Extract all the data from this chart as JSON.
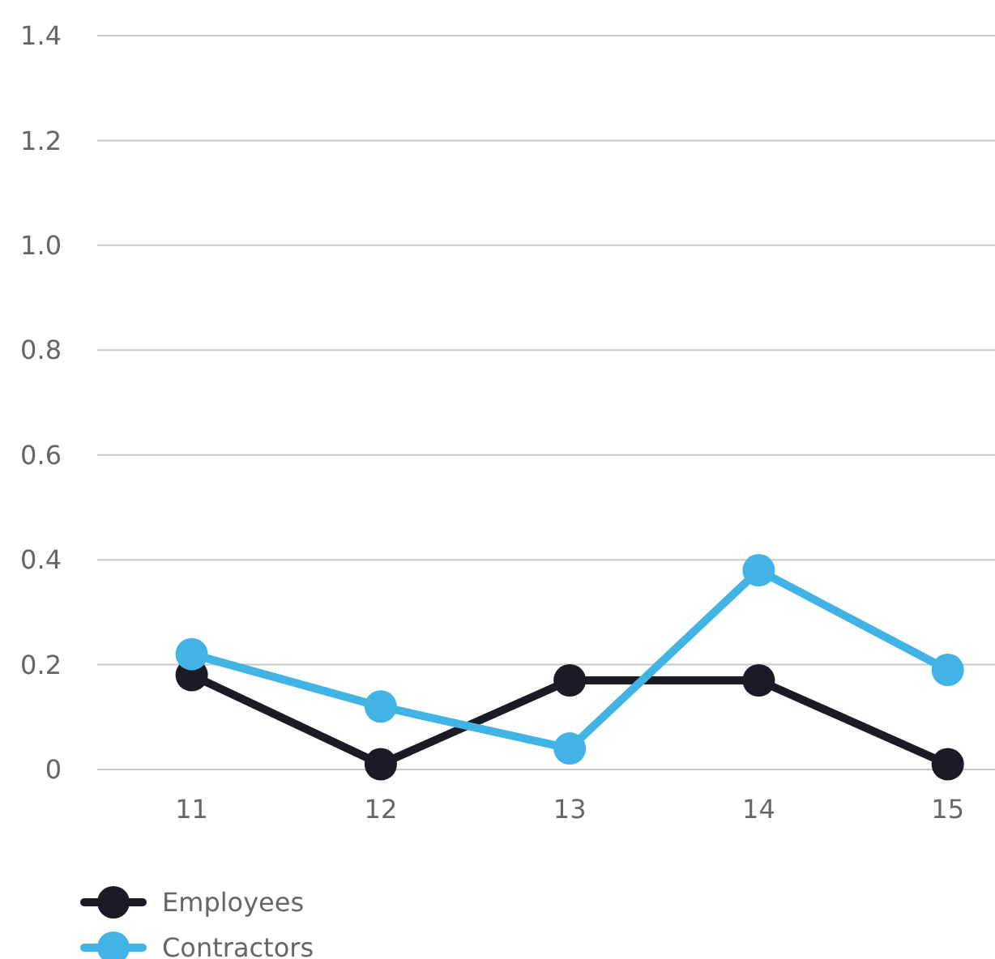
{
  "chart_data": {
    "type": "line",
    "x": [
      11,
      12,
      13,
      14,
      15
    ],
    "series": [
      {
        "name": "Employees",
        "color": "#1b1a25",
        "values": [
          0.18,
          0.01,
          0.17,
          0.17,
          0.01
        ]
      },
      {
        "name": "Contractors",
        "color": "#41b3e4",
        "values": [
          0.22,
          0.12,
          0.04,
          0.38,
          0.19
        ]
      }
    ],
    "xlim": [
      10.5,
      15.25
    ],
    "xticks": [
      11,
      12,
      13,
      14,
      15
    ],
    "ylim": [
      0,
      1.4
    ],
    "yticks": [
      {
        "value": 0,
        "label": "0"
      },
      {
        "value": 0.2,
        "label": "0.2"
      },
      {
        "value": 0.4,
        "label": "0.4"
      },
      {
        "value": 0.6,
        "label": "0.6"
      },
      {
        "value": 0.8,
        "label": "0.8"
      },
      {
        "value": 1,
        "label": "1.0"
      },
      {
        "value": 1.2,
        "label": "1.2"
      },
      {
        "value": 1.4,
        "label": "1.4"
      }
    ],
    "grid": "y",
    "legend": "bottom left",
    "marker": "circle",
    "line_style": "solid"
  }
}
